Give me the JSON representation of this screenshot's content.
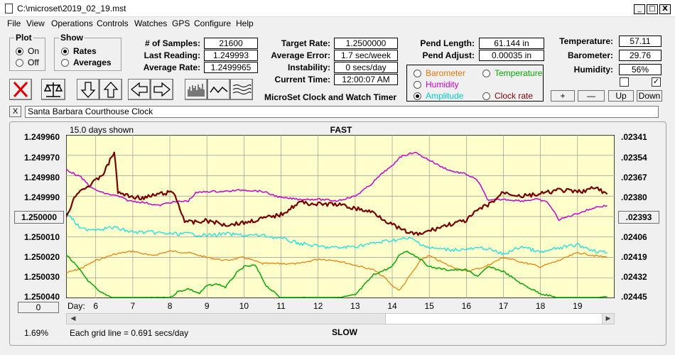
{
  "window": {
    "title": "C:\\microset\\2019_02_19.mst",
    "min_glyph": "_",
    "max_glyph": "□",
    "close_glyph": "X"
  },
  "menu": [
    "File",
    "View",
    "Operations",
    "Controls",
    "Watches",
    "GPS",
    "Configure",
    "Help"
  ],
  "plot_group": {
    "title": "Plot",
    "options": [
      "On",
      "Off"
    ],
    "selected": "On"
  },
  "show_group": {
    "title": "Show",
    "options": [
      "Rates",
      "Averages"
    ],
    "selected": "Rates"
  },
  "stats": {
    "samples_label": "# of Samples:",
    "samples": "21600",
    "last_reading_label": "Last Reading:",
    "last_reading": "1.249993",
    "average_rate_label": "Average Rate:",
    "average_rate": "1.2499965",
    "target_rate_label": "Target Rate:",
    "target_rate": "1.2500000",
    "average_error_label": "Average Error:",
    "average_error": "1.7 sec/week",
    "instability_label": "Instability:",
    "instability": "0 secs/day",
    "current_time_label": "Current Time:",
    "current_time": "12:00:07 AM",
    "pend_length_label": "Pend Length:",
    "pend_length": "61.144 in",
    "pend_adjust_label": "Pend Adjust:",
    "pend_adjust": "0.00035 in",
    "temperature_label": "Temperature:",
    "temperature": "57.11",
    "barometer_label": "Barometer:",
    "barometer": "29.76",
    "humidity_label": "Humidity:",
    "humidity": "56%"
  },
  "app_caption": "MicroSet Clock and Watch Timer",
  "series_selector": [
    {
      "label": "Barometer",
      "color": "#ee7700",
      "selected": false
    },
    {
      "label": "Temperature",
      "color": "#00aa00",
      "selected": false
    },
    {
      "label": "Humidity",
      "color": "#cc00cc",
      "selected": false
    },
    {
      "label": "Amplitude",
      "color": "#00cccc",
      "selected": true
    },
    {
      "label": "Clock rate",
      "color": "#880000",
      "selected": false
    }
  ],
  "checkboxes": [
    {
      "checked": false
    },
    {
      "checked": true
    }
  ],
  "adjust_buttons": {
    "plus": "+",
    "minus": "—",
    "up": "Up",
    "down": "Down"
  },
  "toolbar_icons": [
    "stop-icon",
    "scale-icon",
    "down-arrow-icon",
    "up-arrow-icon",
    "left-arrow-icon",
    "right-arrow-icon",
    "histogram-icon",
    "wave-icon",
    "multi-wave-icon"
  ],
  "clock_name": "Santa Barbara Courthouse Clock",
  "close_glyph": "X",
  "chart_header": {
    "days_shown": "15.0 days shown",
    "fast": "FAST",
    "slow": "SLOW"
  },
  "chart_footer": {
    "day_label": "Day:",
    "grid_note": "Each grid line = 0.691 secs/day",
    "percent": "1.69%",
    "left_button": "0"
  },
  "chart_data": {
    "type": "line",
    "grid": true,
    "background": "#ffffcc",
    "x_range": [
      5.2,
      20.0
    ],
    "x_ticks": [
      6,
      7,
      8,
      9,
      10,
      11,
      12,
      13,
      14,
      15,
      16,
      17,
      18,
      19
    ],
    "y_left": {
      "ticks": [
        "1.249960",
        "1.249970",
        "1.249980",
        "1.249990",
        "1.250000",
        "1.250010",
        "1.250020",
        "1.250030",
        "1.250040"
      ],
      "range": [
        1.24996,
        1.25004
      ],
      "inverted": true,
      "mid_button": "1.250000"
    },
    "y_right": {
      "ticks": [
        ".02341",
        ".02354",
        ".02367",
        ".02380",
        ".02393",
        ".02406",
        ".02419",
        ".02432",
        ".02445"
      ],
      "range": [
        0.02341,
        0.02445
      ],
      "mid_button": ".02393"
    },
    "series": [
      {
        "key": "rate",
        "color": "#7a0000",
        "width": 2.2,
        "x": [
          5.2,
          5.5,
          5.9,
          6.2,
          6.35,
          6.5,
          6.6,
          6.9,
          7.3,
          7.7,
          8.1,
          8.4,
          8.6,
          9.0,
          9.5,
          10.0,
          10.5,
          11.0,
          11.5,
          12.0,
          12.5,
          13.0,
          13.5,
          14.0,
          14.3,
          14.7,
          15.0,
          15.5,
          16.0,
          16.3,
          16.7,
          17.0,
          17.5,
          18.0,
          18.5,
          19.0,
          19.5,
          19.8
        ],
        "y": [
          1.25,
          1.249988,
          1.249984,
          1.249979,
          1.249974,
          1.249968,
          1.249988,
          1.24999,
          1.249991,
          1.249989,
          1.249988,
          1.250002,
          1.250003,
          1.250002,
          1.250004,
          1.250003,
          1.250001,
          1.249999,
          1.249993,
          1.249994,
          1.249994,
          1.249996,
          1.249998,
          1.250004,
          1.250007,
          1.250009,
          1.250007,
          1.250004,
          1.250002,
          1.249997,
          1.249993,
          1.249988,
          1.24999,
          1.249989,
          1.249987,
          1.249988,
          1.249986,
          1.249989
        ]
      },
      {
        "key": "humidity",
        "color": "#cc00cc",
        "width": 1.5,
        "x": [
          5.2,
          5.6,
          5.9,
          6.2,
          6.6,
          6.9,
          7.3,
          7.7,
          8.0,
          8.5,
          8.7,
          9.0,
          9.5,
          10.0,
          10.5,
          11.0,
          11.5,
          12.0,
          12.5,
          13.0,
          13.4,
          13.8,
          14.0,
          14.2,
          14.6,
          15.0,
          15.3,
          15.6,
          16.0,
          16.3,
          16.6,
          17.0,
          17.5,
          17.9,
          18.2,
          18.5,
          19.0,
          19.5,
          19.8
        ],
        "y": [
          0.02363,
          0.02368,
          0.02375,
          0.02378,
          0.0238,
          0.02383,
          0.02384,
          0.02386,
          0.02384,
          0.02383,
          0.02378,
          0.02377,
          0.02377,
          0.02376,
          0.02377,
          0.02381,
          0.02382,
          0.02382,
          0.02383,
          0.0238,
          0.02373,
          0.02364,
          0.02361,
          0.02355,
          0.02352,
          0.02357,
          0.02361,
          0.02364,
          0.02366,
          0.0237,
          0.02383,
          0.02382,
          0.02383,
          0.02382,
          0.02384,
          0.02395,
          0.02391,
          0.02387,
          0.02386
        ]
      },
      {
        "key": "amplitude",
        "color": "#00e5e5",
        "width": 1.2,
        "x": [
          5.2,
          5.6,
          6.0,
          6.5,
          7.0,
          7.5,
          8.0,
          8.5,
          9.0,
          9.5,
          10.0,
          10.5,
          11.0,
          11.5,
          12.0,
          12.5,
          13.0,
          13.5,
          14.0,
          14.5,
          15.0,
          15.5,
          16.0,
          16.5,
          17.0,
          17.5,
          18.0,
          18.5,
          19.0,
          19.5,
          19.8
        ],
        "y": [
          0.0239,
          0.02401,
          0.02401,
          0.024,
          0.02403,
          0.02403,
          0.02404,
          0.02404,
          0.02405,
          0.02404,
          0.02405,
          0.02405,
          0.02407,
          0.0241,
          0.02412,
          0.02413,
          0.02412,
          0.0241,
          0.02408,
          0.02407,
          0.02413,
          0.02414,
          0.02414,
          0.02413,
          0.02417,
          0.02412,
          0.02416,
          0.02413,
          0.02411,
          0.02415,
          0.02416
        ]
      },
      {
        "key": "barometer",
        "color": "#ee7700",
        "width": 1.2,
        "x": [
          5.2,
          5.6,
          6.0,
          6.5,
          7.0,
          7.5,
          8.0,
          8.5,
          9.0,
          9.5,
          10.0,
          10.5,
          11.0,
          11.5,
          12.0,
          12.5,
          13.0,
          13.5,
          13.8,
          14.0,
          14.2,
          14.5,
          14.8,
          15.0,
          15.5,
          16.0,
          16.5,
          17.0,
          17.5,
          18.0,
          18.5,
          19.0,
          19.5,
          19.8
        ],
        "y": [
          0.02429,
          0.02426,
          0.02421,
          0.02417,
          0.02415,
          0.02418,
          0.02415,
          0.02416,
          0.02419,
          0.02421,
          0.02419,
          0.02423,
          0.02423,
          0.02423,
          0.0242,
          0.02421,
          0.02424,
          0.02427,
          0.02432,
          0.02437,
          0.0244,
          0.0243,
          0.0242,
          0.02418,
          0.02424,
          0.02428,
          0.02425,
          0.02419,
          0.02422,
          0.02425,
          0.02421,
          0.02416,
          0.02418,
          0.02419
        ]
      },
      {
        "key": "temperature",
        "color": "#00aa00",
        "width": 1.5,
        "x": [
          5.2,
          5.5,
          5.8,
          6.1,
          6.5,
          7.0,
          7.5,
          8.0,
          8.2,
          8.5,
          8.8,
          9.0,
          9.3,
          9.5,
          9.8,
          10.0,
          10.3,
          10.6,
          11.0,
          11.5,
          12.0,
          12.5,
          13.0,
          13.5,
          14.0,
          14.2,
          14.4,
          14.7,
          15.0,
          15.5,
          16.0,
          16.3,
          16.6,
          17.0,
          17.5,
          18.0,
          18.5,
          19.0,
          19.5,
          19.8
        ],
        "y": [
          0.02417,
          0.02425,
          0.02434,
          0.02441,
          0.02445,
          0.02445,
          0.02445,
          0.02445,
          0.02441,
          0.02439,
          0.02442,
          0.02437,
          0.02436,
          0.02438,
          0.02429,
          0.02425,
          0.02424,
          0.02437,
          0.02445,
          0.02445,
          0.02445,
          0.02445,
          0.02443,
          0.0243,
          0.02425,
          0.02417,
          0.02415,
          0.02419,
          0.02425,
          0.02427,
          0.02427,
          0.02431,
          0.02425,
          0.02428,
          0.02436,
          0.02442,
          0.02445,
          0.02445,
          0.02445,
          0.02444
        ]
      }
    ]
  }
}
